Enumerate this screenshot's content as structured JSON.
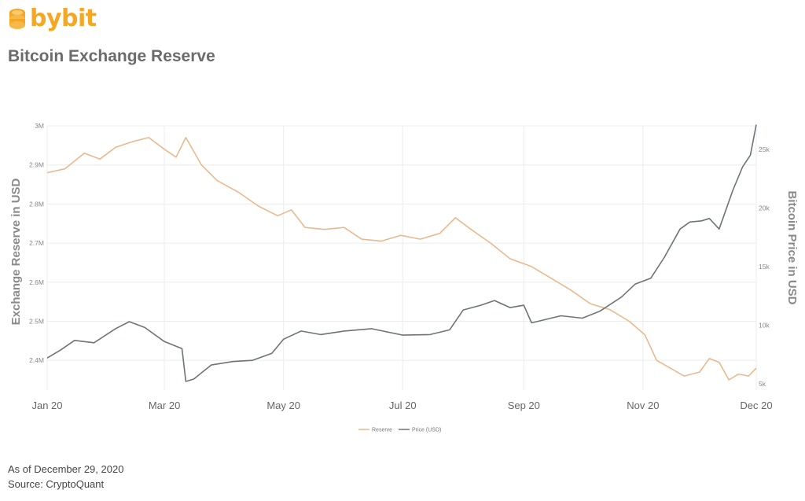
{
  "brand": {
    "name": "bybit",
    "color": "#f5a623"
  },
  "page_title": "Bitcoin Exchange Reserve",
  "footer": {
    "as_of": "As of December 29, 2020",
    "source": "Source: CryptoQuant"
  },
  "chart_data": {
    "type": "line",
    "ylabel": "Exchange Reserve in USD",
    "y2label": "Bitcoin Price in USD",
    "xticks": [
      "Jan 20",
      "Mar 20",
      "May 20",
      "Jul 20",
      "Sep 20",
      "Nov 20",
      "Dec 20"
    ],
    "yticks_left": [
      "3M",
      "2.9M",
      "2.8M",
      "2.7M",
      "2.6M",
      "2.5M",
      "2.4M"
    ],
    "yticks_right": [
      "25k",
      "20k",
      "15k",
      "10k",
      "5k"
    ],
    "ylim": [
      2340000,
      3000000
    ],
    "y2lim": [
      5000,
      27000
    ],
    "grid": true,
    "legend": "bottom-center",
    "series": [
      {
        "name": "Reserve",
        "axis": "left",
        "color": "#e8b98f",
        "x": [
          "2020-01-01",
          "2020-01-10",
          "2020-01-20",
          "2020-01-28",
          "2020-02-05",
          "2020-02-14",
          "2020-02-22",
          "2020-03-01",
          "2020-03-07",
          "2020-03-12",
          "2020-03-20",
          "2020-03-28",
          "2020-04-08",
          "2020-04-18",
          "2020-04-28",
          "2020-05-05",
          "2020-05-12",
          "2020-05-22",
          "2020-06-01",
          "2020-06-10",
          "2020-06-20",
          "2020-06-30",
          "2020-07-10",
          "2020-07-20",
          "2020-07-28",
          "2020-08-05",
          "2020-08-15",
          "2020-08-25",
          "2020-09-05",
          "2020-09-15",
          "2020-09-25",
          "2020-10-05",
          "2020-10-15",
          "2020-10-25",
          "2020-11-02",
          "2020-11-08",
          "2020-11-15",
          "2020-11-22",
          "2020-11-30",
          "2020-12-05",
          "2020-12-10",
          "2020-12-15",
          "2020-12-20",
          "2020-12-25",
          "2020-12-29"
        ],
        "values": [
          2880000,
          2890000,
          2930000,
          2915000,
          2945000,
          2960000,
          2970000,
          2940000,
          2920000,
          2970000,
          2900000,
          2860000,
          2830000,
          2795000,
          2770000,
          2785000,
          2740000,
          2735000,
          2740000,
          2710000,
          2705000,
          2720000,
          2710000,
          2725000,
          2765000,
          2735000,
          2700000,
          2660000,
          2640000,
          2610000,
          2580000,
          2545000,
          2530000,
          2500000,
          2465000,
          2400000,
          2380000,
          2360000,
          2370000,
          2405000,
          2395000,
          2350000,
          2365000,
          2360000,
          2380000
        ]
      },
      {
        "name": "Price (USD)",
        "axis": "right",
        "color": "#6e7378",
        "x": [
          "2020-01-01",
          "2020-01-08",
          "2020-01-15",
          "2020-01-25",
          "2020-02-05",
          "2020-02-12",
          "2020-02-20",
          "2020-03-01",
          "2020-03-10",
          "2020-03-12",
          "2020-03-16",
          "2020-03-25",
          "2020-04-05",
          "2020-04-15",
          "2020-04-25",
          "2020-05-01",
          "2020-05-10",
          "2020-05-20",
          "2020-06-01",
          "2020-06-15",
          "2020-07-01",
          "2020-07-15",
          "2020-07-25",
          "2020-08-01",
          "2020-08-10",
          "2020-08-17",
          "2020-08-25",
          "2020-09-01",
          "2020-09-05",
          "2020-09-20",
          "2020-10-01",
          "2020-10-10",
          "2020-10-21",
          "2020-10-28",
          "2020-11-05",
          "2020-11-12",
          "2020-11-20",
          "2020-11-25",
          "2020-12-01",
          "2020-12-05",
          "2020-12-10",
          "2020-12-17",
          "2020-12-22",
          "2020-12-26",
          "2020-12-29"
        ],
        "values": [
          7200,
          7900,
          8700,
          8500,
          9700,
          10300,
          9800,
          8600,
          8000,
          5200,
          5400,
          6600,
          6900,
          7000,
          7600,
          8800,
          9500,
          9200,
          9500,
          9700,
          9150,
          9200,
          9600,
          11300,
          11700,
          12100,
          11500,
          11700,
          10200,
          10800,
          10600,
          11200,
          12400,
          13500,
          14000,
          15800,
          18200,
          18800,
          18900,
          19100,
          18200,
          21500,
          23500,
          24500,
          27100
        ]
      }
    ]
  }
}
